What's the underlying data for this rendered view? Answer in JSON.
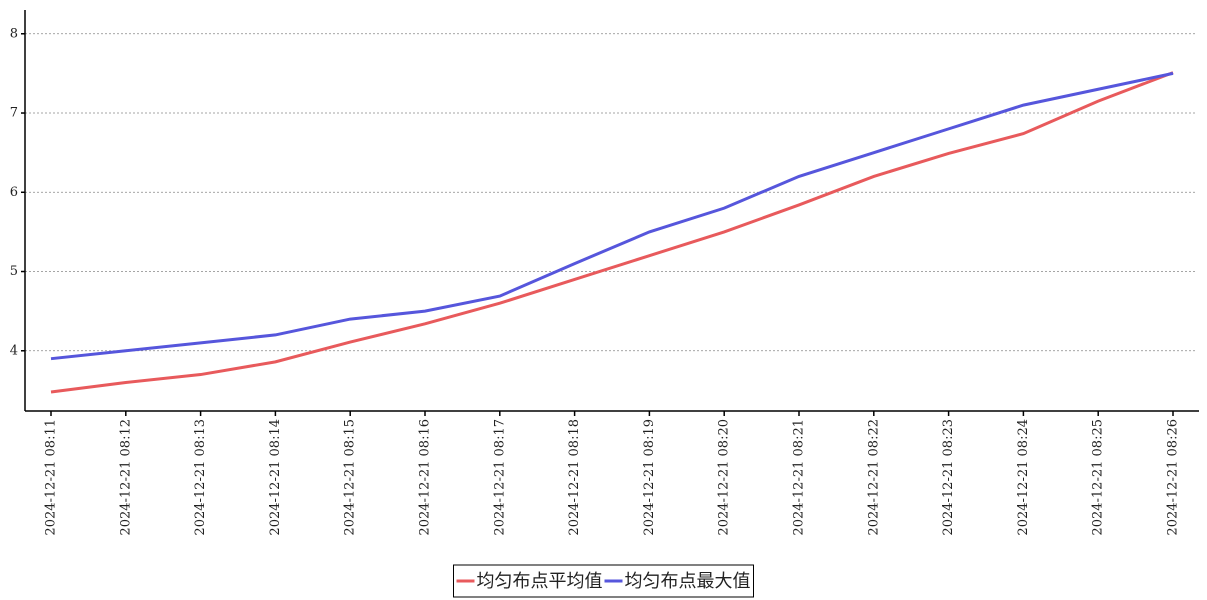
{
  "chart_data": {
    "type": "line",
    "categories": [
      "2024-12-21 08:11",
      "2024-12-21 08:12",
      "2024-12-21 08:13",
      "2024-12-21 08:14",
      "2024-12-21 08:15",
      "2024-12-21 08:16",
      "2024-12-21 08:17",
      "2024-12-21 08:18",
      "2024-12-21 08:19",
      "2024-12-21 08:20",
      "2024-12-21 08:21",
      "2024-12-21 08:22",
      "2024-12-21 08:23",
      "2024-12-21 08:24",
      "2024-12-21 08:25",
      "2024-12-21 08:26"
    ],
    "series": [
      {
        "name": "均匀布点平均值",
        "color": "#e85a5c",
        "values": [
          3.48,
          3.6,
          3.7,
          3.86,
          4.11,
          4.34,
          4.6,
          4.9,
          5.2,
          5.5,
          5.84,
          6.2,
          6.49,
          6.74,
          7.15,
          7.51
        ]
      },
      {
        "name": "均匀布点最大值",
        "color": "#5656dc",
        "values": [
          3.9,
          4.0,
          4.1,
          4.2,
          4.4,
          4.5,
          4.69,
          5.1,
          5.5,
          5.8,
          6.2,
          6.5,
          6.8,
          7.1,
          7.3,
          7.5
        ]
      }
    ],
    "ylim": [
      3.24,
      8.3
    ],
    "yticks": [
      4,
      5,
      6,
      7,
      8
    ],
    "grid": true,
    "legend": "bottom"
  }
}
